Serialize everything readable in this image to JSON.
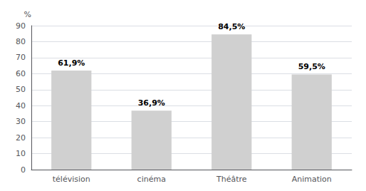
{
  "chart_data": {
    "type": "bar",
    "categories": [
      "télévision",
      "cinéma",
      "Théâtre",
      "Animation"
    ],
    "values": [
      61.9,
      36.9,
      84.5,
      59.5
    ],
    "value_labels": [
      "61,9%",
      "36,9%",
      "84,5%",
      "59,5%"
    ],
    "data_labels": true,
    "color": "#d0d0d0",
    "ylabel": "%",
    "ylim": [
      0,
      90
    ],
    "yticks": [
      0,
      10,
      20,
      30,
      40,
      50,
      60,
      70,
      80,
      90
    ],
    "grid": true
  }
}
